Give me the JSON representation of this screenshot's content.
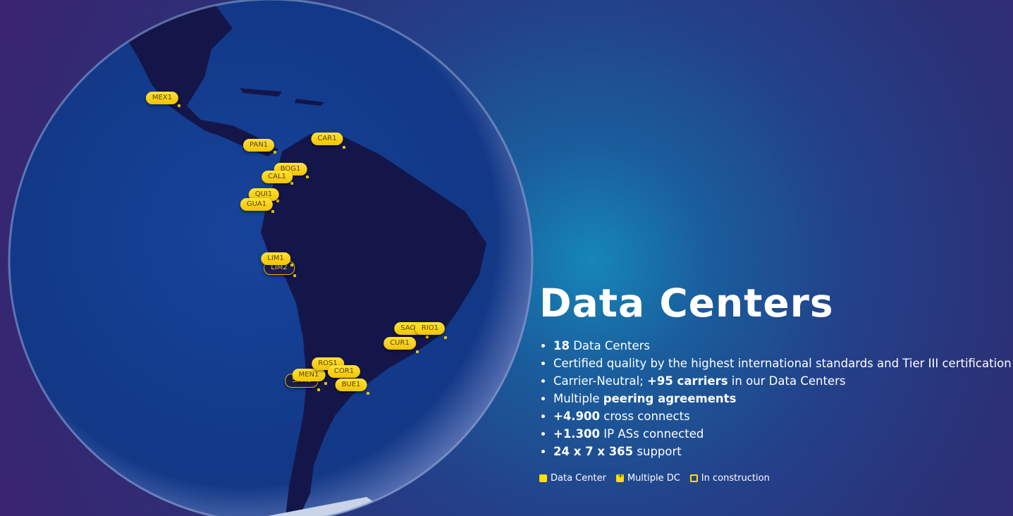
{
  "title": "Data Centers",
  "features": [
    {
      "bold": "18",
      "text": " Data Centers"
    },
    {
      "pre": "Certified quality by the highest international standards and Tier III certification"
    },
    {
      "pre": "Carrier-Neutral; ",
      "bold": "+95 carriers",
      "text": " in our Data Centers"
    },
    {
      "pre": "Multiple ",
      "bold": "peering agreements"
    },
    {
      "bold": "+4.900",
      "text": " cross connects"
    },
    {
      "bold": "+1.300",
      "text": " IP ASs connected"
    },
    {
      "bold": "24 x 7 x 365",
      "text": " support"
    }
  ],
  "legend": {
    "data_center": "Data Center",
    "multiple_dc": "Multiple DC",
    "in_construction": "In construction"
  },
  "colors": {
    "pin": "#ffd400",
    "land": "#14164a",
    "ocean": "#123f8f"
  },
  "pins": [
    {
      "label": "MEX1",
      "type": "data-center"
    },
    {
      "label": "PAN1",
      "type": "data-center"
    },
    {
      "label": "CAR1",
      "type": "data-center"
    },
    {
      "label": "BOG1",
      "type": "data-center"
    },
    {
      "label": "CAL1",
      "type": "data-center"
    },
    {
      "label": "QUI1",
      "type": "data-center"
    },
    {
      "label": "GUA1",
      "type": "data-center"
    },
    {
      "label": "LIM2",
      "type": "in-construction"
    },
    {
      "label": "LIM1",
      "type": "data-center"
    },
    {
      "label": "SAO1",
      "type": "data-center"
    },
    {
      "label": "RIO1",
      "type": "data-center"
    },
    {
      "label": "CUR1",
      "type": "data-center"
    },
    {
      "label": "SAN1",
      "type": "in-construction"
    },
    {
      "label": "MEN1",
      "type": "data-center"
    },
    {
      "label": "ROS1",
      "type": "data-center"
    },
    {
      "label": "COR1",
      "type": "data-center"
    },
    {
      "label": "BUE1",
      "type": "data-center"
    }
  ]
}
